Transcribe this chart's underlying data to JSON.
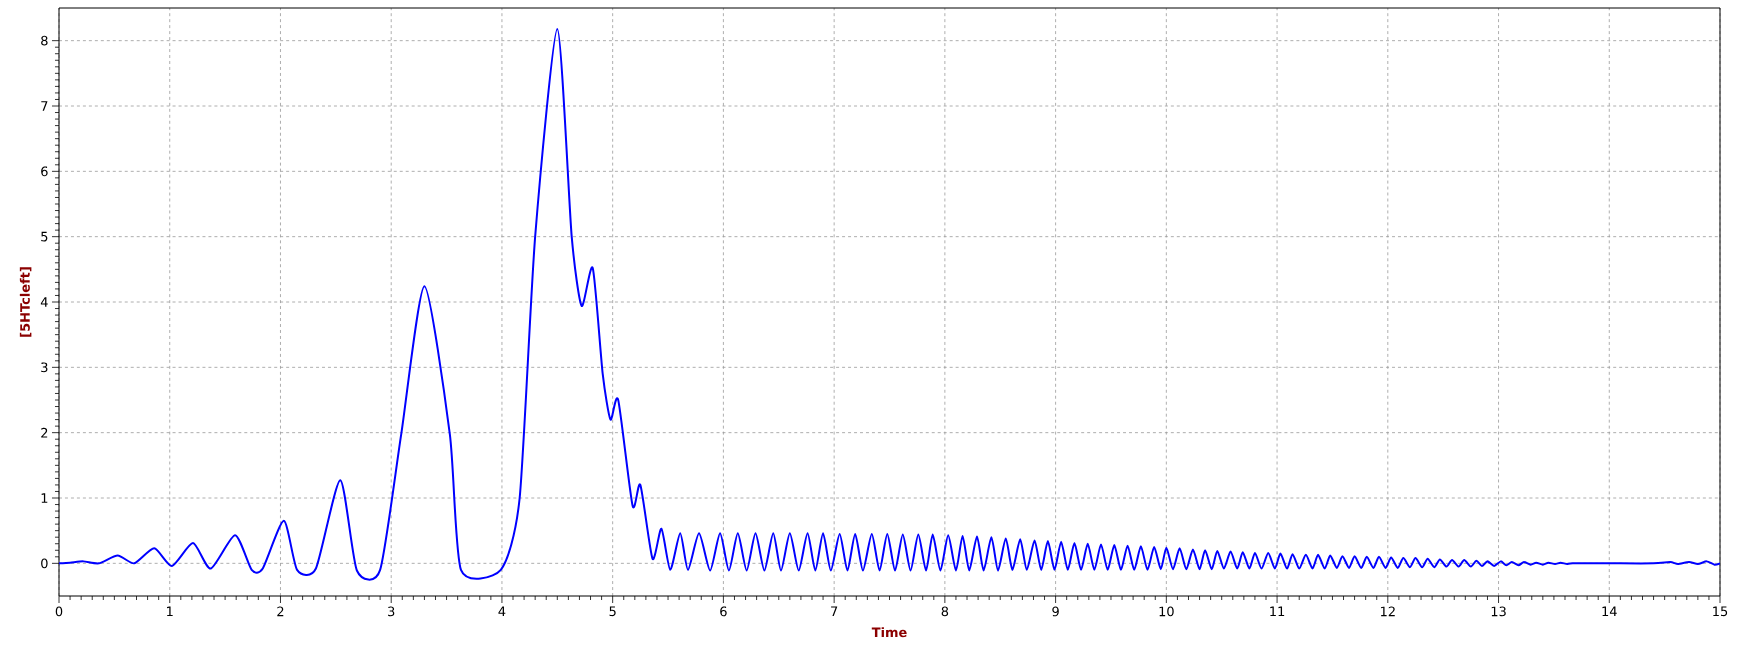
{
  "chart_data": {
    "type": "line",
    "xlabel": "Time",
    "ylabel": "[5HTcleft]",
    "xlim": [
      0,
      15
    ],
    "ylim": [
      -0.5,
      8.5
    ],
    "xticks": [
      0,
      1,
      2,
      3,
      4,
      5,
      6,
      7,
      8,
      9,
      10,
      11,
      12,
      13,
      14,
      15
    ],
    "yticks": [
      0,
      1,
      2,
      3,
      4,
      5,
      6,
      7,
      8
    ],
    "grid": true,
    "line_style": "solid",
    "marker": "none",
    "series": [
      {
        "color": "#0000ff",
        "x": [
          0,
          0.1,
          0.22,
          0.36,
          0.53,
          0.68,
          0.86,
          1.02,
          1.21,
          1.37,
          1.59,
          1.74,
          1.84,
          2.03,
          2.15,
          2.32,
          2.54,
          2.69,
          2.9,
          3.09,
          3.3,
          3.53,
          3.63,
          3.99,
          4.16,
          4.3,
          4.5,
          4.63,
          4.72,
          4.82,
          4.91,
          4.98,
          5.05,
          5.18,
          5.25,
          5.36,
          5.44,
          5.52,
          5.61,
          5.68,
          5.78,
          5.88,
          5.97,
          6.05,
          6.13,
          6.21,
          6.29,
          6.37,
          6.45,
          6.52,
          6.6,
          6.68,
          6.76,
          6.83,
          6.9,
          6.97,
          7.05,
          7.12,
          7.19,
          7.26,
          7.34,
          7.41,
          7.48,
          7.55,
          7.62,
          7.69,
          7.76,
          7.83,
          7.89,
          7.96,
          8.03,
          8.1,
          8.16,
          8.22,
          8.29,
          8.35,
          8.42,
          8.48,
          8.55,
          8.61,
          8.68,
          8.74,
          8.81,
          8.87,
          8.93,
          8.99,
          9.05,
          9.11,
          9.17,
          9.23,
          9.29,
          9.35,
          9.41,
          9.47,
          9.53,
          9.59,
          9.65,
          9.71,
          9.77,
          9.83,
          9.89,
          9.95,
          10.0,
          10.06,
          10.12,
          10.18,
          10.24,
          10.3,
          10.35,
          10.41,
          10.46,
          10.52,
          10.58,
          10.64,
          10.69,
          10.75,
          10.8,
          10.86,
          10.92,
          10.98,
          11.03,
          11.09,
          11.14,
          11.2,
          11.26,
          11.32,
          11.37,
          11.43,
          11.48,
          11.54,
          11.59,
          11.65,
          11.7,
          11.76,
          11.81,
          11.87,
          11.92,
          11.98,
          12.03,
          12.09,
          12.14,
          12.2,
          12.25,
          12.31,
          12.36,
          12.42,
          12.47,
          12.53,
          12.58,
          12.64,
          12.69,
          12.75,
          12.8,
          12.85,
          12.9,
          12.96,
          13.02,
          13.07,
          13.12,
          13.18,
          13.23,
          13.29,
          13.34,
          13.4,
          13.45,
          13.51,
          13.56,
          13.62,
          13.67,
          14.0,
          14.4,
          14.55,
          14.62,
          14.72,
          14.8,
          14.88,
          14.95,
          15.0
        ],
        "values": [
          0,
          0.01,
          0.03,
          0,
          0.12,
          0,
          0.23,
          -0.04,
          0.31,
          -0.08,
          0.43,
          -0.1,
          -0.08,
          0.65,
          -0.1,
          -0.08,
          1.27,
          -0.11,
          -0.1,
          1.97,
          4.24,
          1.97,
          -0.1,
          -0.1,
          1.0,
          5.0,
          8.18,
          5.0,
          3.94,
          4.52,
          2.9,
          2.2,
          2.5,
          0.88,
          1.2,
          0.07,
          0.53,
          -0.1,
          0.46,
          -0.1,
          0.46,
          -0.11,
          0.46,
          -0.11,
          0.46,
          -0.11,
          0.46,
          -0.11,
          0.46,
          -0.11,
          0.46,
          -0.11,
          0.46,
          -0.11,
          0.46,
          -0.11,
          0.45,
          -0.11,
          0.45,
          -0.11,
          0.45,
          -0.11,
          0.45,
          -0.11,
          0.44,
          -0.11,
          0.44,
          -0.11,
          0.44,
          -0.11,
          0.43,
          -0.11,
          0.42,
          -0.11,
          0.41,
          -0.11,
          0.4,
          -0.11,
          0.38,
          -0.1,
          0.37,
          -0.1,
          0.35,
          -0.1,
          0.34,
          -0.1,
          0.33,
          -0.1,
          0.31,
          -0.1,
          0.3,
          -0.1,
          0.29,
          -0.1,
          0.28,
          -0.1,
          0.27,
          -0.1,
          0.26,
          -0.1,
          0.25,
          -0.09,
          0.24,
          -0.09,
          0.23,
          -0.09,
          0.21,
          -0.09,
          0.2,
          -0.09,
          0.19,
          -0.08,
          0.18,
          -0.08,
          0.17,
          -0.08,
          0.16,
          -0.08,
          0.16,
          -0.08,
          0.15,
          -0.08,
          0.14,
          -0.08,
          0.13,
          -0.08,
          0.13,
          -0.08,
          0.12,
          -0.07,
          0.11,
          -0.07,
          0.11,
          -0.07,
          0.1,
          -0.07,
          0.1,
          -0.07,
          0.09,
          -0.07,
          0.08,
          -0.06,
          0.08,
          -0.06,
          0.07,
          -0.06,
          0.06,
          -0.05,
          0.05,
          -0.05,
          0.05,
          -0.05,
          0.04,
          -0.04,
          0.03,
          -0.04,
          0.03,
          -0.03,
          0.02,
          -0.03,
          0.02,
          -0.02,
          0.01,
          -0.02,
          0.01,
          -0.01,
          0.01,
          -0.01,
          0,
          0,
          0,
          0.02,
          -0.01,
          0.02,
          -0.01,
          0.03,
          -0.02,
          0
        ]
      }
    ]
  }
}
